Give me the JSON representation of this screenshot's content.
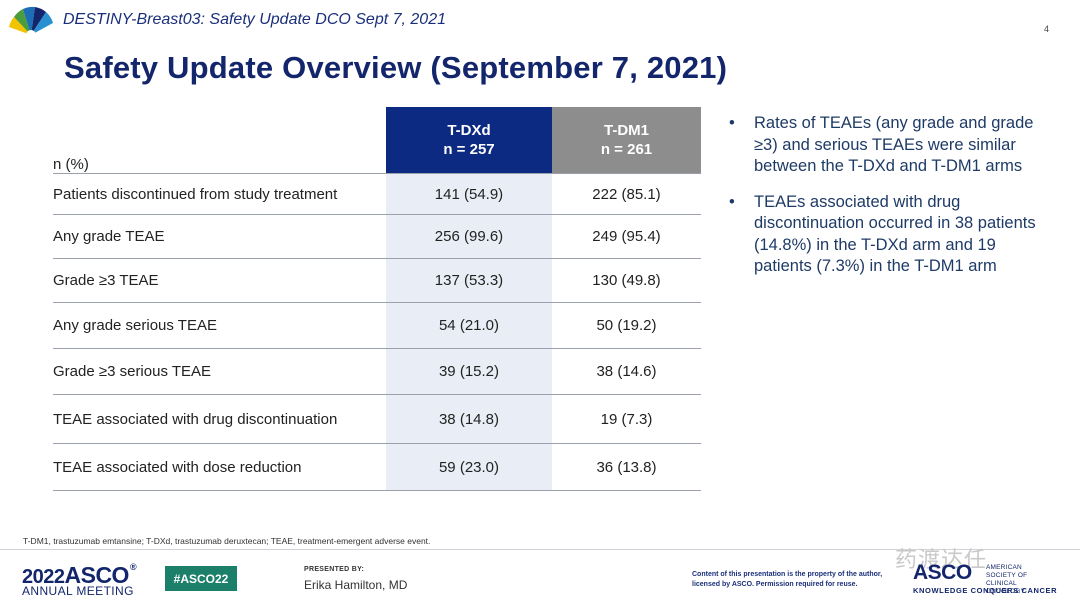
{
  "header": {
    "title": "DESTINY-Breast03: Safety Update DCO Sept 7, 2021",
    "page_number": "4"
  },
  "slide": {
    "title": "Safety Update Overview (September 7, 2021)"
  },
  "table": {
    "row_header": "n (%)",
    "arm_a": {
      "name": "T-DXd",
      "n": "n = 257"
    },
    "arm_b": {
      "name": "T-DM1",
      "n": "n = 261"
    },
    "rows": [
      {
        "label": "Patients discontinued from study treatment",
        "a": "141 (54.9)",
        "b": "222 (85.1)"
      },
      {
        "label": "Any grade TEAE",
        "a": "256 (99.6)",
        "b": "249 (95.4)"
      },
      {
        "label": "Grade ≥3 TEAE",
        "a": "137 (53.3)",
        "b": "130 (49.8)"
      },
      {
        "label": "Any grade serious TEAE",
        "a": "54 (21.0)",
        "b": "50 (19.2)"
      },
      {
        "label": "Grade ≥3 serious TEAE",
        "a": "39 (15.2)",
        "b": "38 (14.6)"
      },
      {
        "label": "TEAE associated with drug discontinuation",
        "a": "38 (14.8)",
        "b": "19 (7.3)"
      },
      {
        "label": "TEAE associated with dose reduction",
        "a": "59 (23.0)",
        "b": "36 (13.8)"
      }
    ],
    "colors": {
      "arm_a_header": "#0c2a82",
      "arm_b_header": "#8d8d8d",
      "arm_a_cell": "#e9eef6"
    }
  },
  "bullets": [
    "Rates of TEAEs (any grade and grade ≥3) and serious TEAEs were similar between the T-DXd and T-DM1 arms",
    "TEAEs associated with drug discontinuation occurred in 38 patients (14.8%) in the T-DXd arm and 19 patients (7.3%) in the T-DM1 arm"
  ],
  "footnote": "T-DM1, trastuzumab emtansine; T-DXd, trastuzumab deruxtecan; TEAE, treatment-emergent adverse event.",
  "footer": {
    "meeting_year": "2022",
    "meeting_name": "ASCO",
    "meeting_subtitle": "ANNUAL MEETING",
    "hashtag": "#ASCO22",
    "presented_by_label": "PRESENTED BY:",
    "presenter": "Erika Hamilton, MD",
    "content_note": "Content of this presentation is the property of the author, licensed by ASCO. Permission required for reuse.",
    "asco_word": "ASCO",
    "asco_society": "AMERICAN SOCIETY OF CLINICAL ONCOLOGY",
    "asco_tagline": "KNOWLEDGE CONQUERS CANCER",
    "watermark": "药渡达任"
  },
  "icons": {
    "logo": "asco-fan-logo-icon"
  },
  "colors": {
    "title": "#13266b",
    "accent_green": "#1b7f6a"
  }
}
